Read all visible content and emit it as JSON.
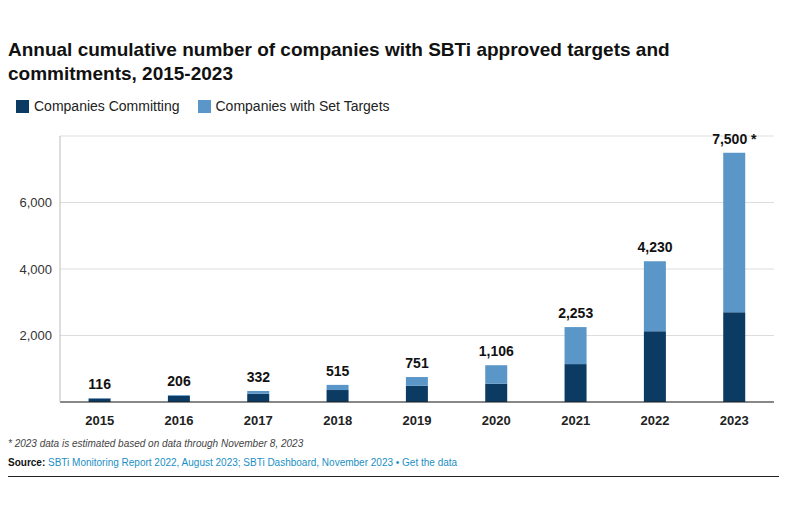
{
  "chart_data": {
    "type": "bar",
    "stacked": true,
    "title": "Annual cumulative number of companies with SBTi approved targets and commitments, 2015-2023",
    "categories": [
      "2015",
      "2016",
      "2017",
      "2018",
      "2019",
      "2020",
      "2021",
      "2022",
      "2023"
    ],
    "series": [
      {
        "name": "Companies Committing",
        "color": "#0b3a63",
        "values": [
          105,
          180,
          245,
          360,
          490,
          550,
          1140,
          2130,
          2700
        ]
      },
      {
        "name": "Companies with Set Targets",
        "color": "#5a96c8",
        "values": [
          11,
          26,
          87,
          155,
          261,
          556,
          1113,
          2100,
          4800
        ]
      }
    ],
    "totals": [
      116,
      206,
      332,
      515,
      751,
      1106,
      2253,
      4230,
      7500
    ],
    "total_labels": [
      "116",
      "206",
      "332",
      "515",
      "751",
      "1,106",
      "2,253",
      "4,230",
      "7,500 *"
    ],
    "ylim": [
      0,
      8000
    ],
    "yticks": [
      {
        "value": 2000,
        "label": "2,000"
      },
      {
        "value": 4000,
        "label": "4,000"
      },
      {
        "value": 6000,
        "label": "6,000"
      }
    ],
    "grid": true,
    "legend": "top",
    "footnote": "* 2023 data is estimated based on data through November 8, 2023",
    "source_label": "Source:",
    "source": "SBTi Monitoring Report 2022, August 2023; SBTi Dashboard, November 2023 • Get the data"
  }
}
